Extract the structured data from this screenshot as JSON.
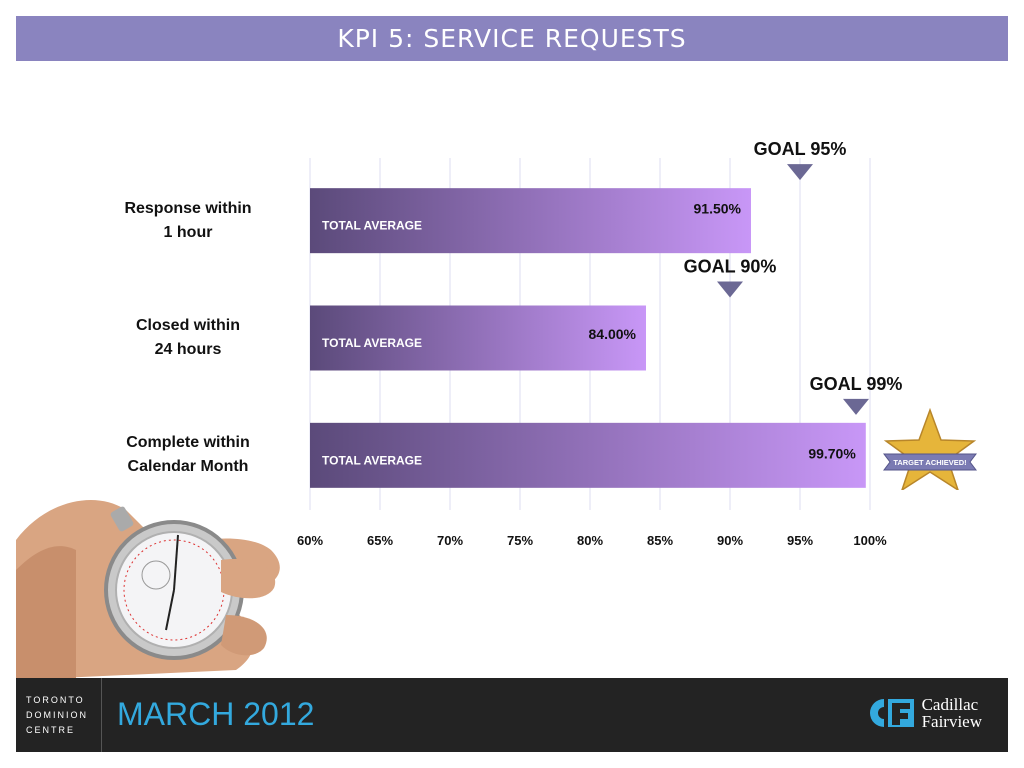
{
  "header": {
    "title": "KPI 5: SERVICE REQUESTS"
  },
  "chart_data": {
    "type": "bar",
    "orientation": "horizontal",
    "categories": [
      "Response within 1 hour",
      "Closed within 24 hours",
      "Complete within Calendar Month"
    ],
    "category_lines": [
      [
        "Response within",
        "1 hour"
      ],
      [
        "Closed within",
        "24 hours"
      ],
      [
        "Complete within",
        "Calendar Month"
      ]
    ],
    "series": [
      {
        "name": "TOTAL AVERAGE",
        "values": [
          91.5,
          84.0,
          99.7
        ]
      }
    ],
    "value_labels": [
      "91.50%",
      "84.00%",
      "99.70%"
    ],
    "goals": [
      95,
      90,
      99
    ],
    "goal_labels": [
      "GOAL 95%",
      "GOAL 90%",
      "GOAL 99%"
    ],
    "xlim": [
      60,
      100
    ],
    "xticks": [
      60,
      65,
      70,
      75,
      80,
      85,
      90,
      95,
      100
    ],
    "xtick_labels": [
      "60%",
      "65%",
      "70%",
      "75%",
      "80%",
      "85%",
      "90%",
      "95%",
      "100%"
    ],
    "grid": true,
    "colors": {
      "bar_start": "#5b4a7a",
      "bar_end": "#c897f7",
      "goal_marker": "#6b6894",
      "grid": "#dcdcf0"
    }
  },
  "badge": {
    "label": "TARGET ACHIEVED!"
  },
  "footer": {
    "org_lines": [
      "TORONTO",
      "DOMINION",
      "CENTRE"
    ],
    "date": "MARCH 2012",
    "logo_lines": [
      "Cadillac",
      "Fairview"
    ]
  },
  "colors": {
    "header_bg": "#8a84bf",
    "footer_bg": "#232323",
    "date": "#33a9de"
  }
}
